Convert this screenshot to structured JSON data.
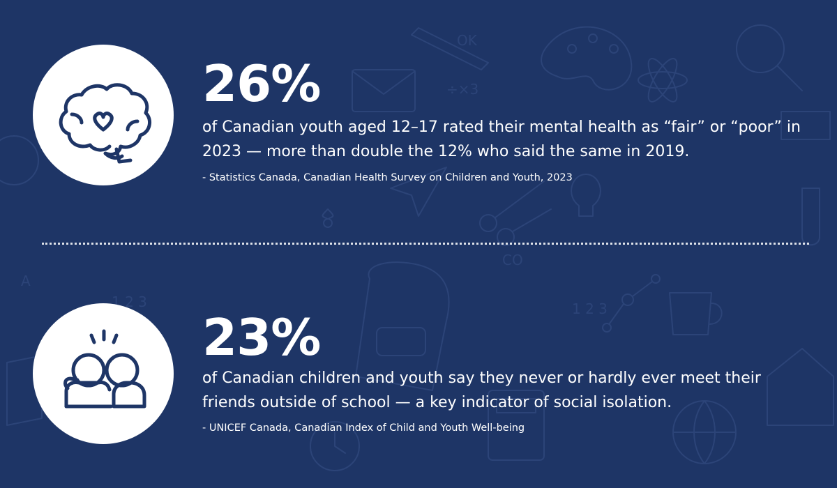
{
  "colors": {
    "background": "#1e3566",
    "text": "#ffffff",
    "icon_stroke": "#1e3566"
  },
  "stats": [
    {
      "icon": "brain-heart-icon",
      "value": "26%",
      "description": "of Canadian youth aged 12–17 rated their mental health as “fair” or “poor” in 2023 — more than double the 12% who said the same in 2019.",
      "source": "- Statistics Canada, Canadian Health Survey on Children and Youth, 2023"
    },
    {
      "icon": "two-people-icon",
      "value": "23%",
      "description": "of Canadian children and youth say they never or hardly ever meet their friends outside of school — a key indicator of social isolation.",
      "source": "- UNICEF Canada, Canadian Index of Child and Youth Well-being"
    }
  ]
}
